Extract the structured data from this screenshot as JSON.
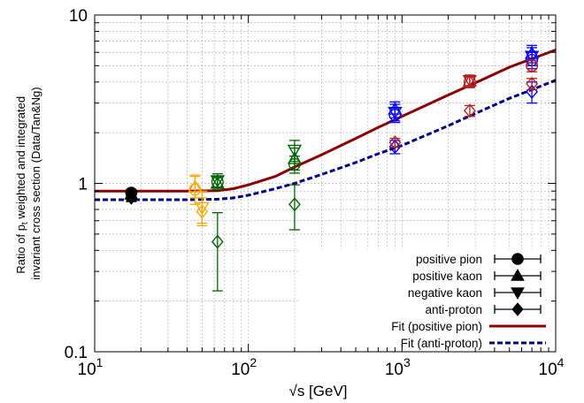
{
  "chart_data": {
    "type": "scatter",
    "xlabel": "√s [GeV]",
    "ylabel_line1_pre": "Ratio of p",
    "ylabel_line1_sub": "t",
    "ylabel_line1_post": " weighted and integrated",
    "ylabel_line2": "invariant cross section (Data/Tan&Ng)",
    "x_scale": "log",
    "y_scale": "log",
    "xlim": [
      10,
      10000
    ],
    "ylim": [
      0.1,
      10
    ],
    "x_ticks": [
      {
        "value": 10,
        "base": "10",
        "exp": "1"
      },
      {
        "value": 100,
        "base": "10",
        "exp": "2"
      },
      {
        "value": 1000,
        "base": "10",
        "exp": "3"
      },
      {
        "value": 10000,
        "base": "10",
        "exp": "4"
      }
    ],
    "y_ticks": [
      {
        "value": 0.1,
        "label": "0.1"
      },
      {
        "value": 1,
        "label": "1"
      },
      {
        "value": 10,
        "label": "10"
      }
    ],
    "grid": true,
    "legend_position": "bottom-right",
    "legend": [
      {
        "label": "positive pion",
        "marker": "circle"
      },
      {
        "label": "positive kaon",
        "marker": "triangle-up"
      },
      {
        "label": "negative kaon",
        "marker": "triangle-down"
      },
      {
        "label": "anti-proton",
        "marker": "diamond"
      },
      {
        "label": "Fit (positive pion)",
        "line": "solid",
        "color": "#8b0000"
      },
      {
        "label": "Fit (anti-proton)",
        "line": "dashed",
        "color": "#00008b"
      }
    ],
    "energy_groups": [
      {
        "energy_gev": 17.3,
        "color": "#000000",
        "fill": "filled",
        "points": [
          {
            "species": "positive pion",
            "y": 0.88,
            "yerr": [
              0.84,
              0.92
            ]
          },
          {
            "species": "positive kaon",
            "y": 0.86,
            "yerr": [
              0.82,
              0.9
            ]
          },
          {
            "species": "negative kaon",
            "y": 0.84,
            "yerr": [
              0.8,
              0.88
            ]
          },
          {
            "species": "anti-proton",
            "y": 0.82,
            "yerr": [
              0.78,
              0.86
            ]
          }
        ]
      },
      {
        "energy_gev": 45,
        "color": "#ffa500",
        "fill": "open",
        "points": [
          {
            "species": "positive pion",
            "y": 0.92,
            "yerr": [
              0.75,
              1.12
            ]
          },
          {
            "species": "positive kaon",
            "y": 0.95,
            "yerr": [
              0.82,
              1.1
            ]
          }
        ]
      },
      {
        "energy_gev": 50,
        "color": "#ffa500",
        "fill": "open",
        "points": [
          {
            "species": "negative kaon",
            "y": 0.72,
            "yerr": [
              0.58,
              0.9
            ]
          },
          {
            "species": "anti-proton",
            "y": 0.68,
            "yerr": [
              0.56,
              0.82
            ]
          }
        ]
      },
      {
        "energy_gev": 63,
        "color": "#006400",
        "fill": "open",
        "points": [
          {
            "species": "positive pion",
            "y": 1.02,
            "yerr": [
              0.95,
              1.1
            ]
          },
          {
            "species": "positive kaon",
            "y": 1.0,
            "yerr": [
              0.92,
              1.08
            ]
          },
          {
            "species": "negative kaon",
            "y": 1.04,
            "yerr": [
              0.95,
              1.14
            ]
          },
          {
            "species": "anti-proton",
            "y": 0.45,
            "yerr": [
              0.23,
              0.67
            ]
          }
        ]
      },
      {
        "energy_gev": 200,
        "color": "#006400",
        "fill": "open",
        "points": [
          {
            "species": "positive pion",
            "y": 1.3,
            "yerr": [
              1.15,
              1.45
            ]
          },
          {
            "species": "positive kaon",
            "y": 1.4,
            "yerr": [
              1.2,
              1.62
            ]
          },
          {
            "species": "negative kaon",
            "y": 1.58,
            "yerr": [
              1.35,
              1.8
            ]
          },
          {
            "species": "anti-proton",
            "y": 0.75,
            "yerr": [
              0.53,
              0.98
            ]
          }
        ]
      },
      {
        "energy_gev": 900,
        "color": "#0000ff",
        "fill": "open",
        "points": [
          {
            "species": "positive pion",
            "y": 2.55,
            "yerr": [
              2.3,
              2.8
            ]
          },
          {
            "species": "positive kaon",
            "y": 2.75,
            "yerr": [
              2.45,
              3.05
            ]
          },
          {
            "species": "negative kaon",
            "y": 2.65,
            "yerr": [
              2.35,
              2.95
            ]
          },
          {
            "species": "anti-proton",
            "y": 1.65,
            "yerr": [
              1.5,
              1.8
            ]
          }
        ]
      },
      {
        "energy_gev": 900,
        "color": "#b22222",
        "fill": "open",
        "points": [
          {
            "species": "anti-proton",
            "y": 1.75,
            "yerr": [
              1.65,
              1.85
            ]
          }
        ]
      },
      {
        "energy_gev": 2760,
        "color": "#b22222",
        "fill": "open",
        "points": [
          {
            "species": "positive pion",
            "y": 4.0,
            "yerr": [
              3.7,
              4.3
            ]
          },
          {
            "species": "positive kaon",
            "y": 4.05,
            "yerr": [
              3.75,
              4.35
            ]
          },
          {
            "species": "negative kaon",
            "y": 4.1,
            "yerr": [
              3.8,
              4.4
            ]
          },
          {
            "species": "anti-proton",
            "y": 2.7,
            "yerr": [
              2.5,
              2.9
            ]
          }
        ]
      },
      {
        "energy_gev": 7000,
        "color": "#0000ff",
        "fill": "open",
        "points": [
          {
            "species": "positive pion",
            "y": 5.4,
            "yerr": [
              4.8,
              6.0
            ]
          },
          {
            "species": "positive kaon",
            "y": 5.9,
            "yerr": [
              5.2,
              6.6
            ]
          },
          {
            "species": "negative kaon",
            "y": 5.7,
            "yerr": [
              5.0,
              6.4
            ]
          },
          {
            "species": "anti-proton",
            "y": 3.5,
            "yerr": [
              3.0,
              4.0
            ]
          }
        ]
      },
      {
        "energy_gev": 7000,
        "color": "#b22222",
        "fill": "open",
        "points": [
          {
            "species": "positive pion",
            "y": 5.0,
            "yerr": [
              4.6,
              5.4
            ]
          },
          {
            "species": "anti-proton",
            "y": 3.9,
            "yerr": [
              3.6,
              4.2
            ]
          }
        ]
      }
    ],
    "fit_curves": [
      {
        "name": "Fit (positive pion)",
        "color": "#8b0000",
        "style": "solid",
        "points": [
          [
            10,
            0.9
          ],
          [
            40,
            0.9
          ],
          [
            63,
            0.905
          ],
          [
            80,
            0.93
          ],
          [
            100,
            0.98
          ],
          [
            150,
            1.1
          ],
          [
            200,
            1.25
          ],
          [
            300,
            1.48
          ],
          [
            500,
            1.85
          ],
          [
            700,
            2.15
          ],
          [
            1000,
            2.5
          ],
          [
            2000,
            3.35
          ],
          [
            3000,
            3.95
          ],
          [
            5000,
            4.9
          ],
          [
            7000,
            5.5
          ],
          [
            10000,
            6.2
          ]
        ]
      },
      {
        "name": "Fit (anti-proton)",
        "color": "#00008b",
        "style": "dashed",
        "points": [
          [
            10,
            0.8
          ],
          [
            40,
            0.8
          ],
          [
            63,
            0.805
          ],
          [
            80,
            0.82
          ],
          [
            100,
            0.85
          ],
          [
            150,
            0.93
          ],
          [
            200,
            1.0
          ],
          [
            300,
            1.13
          ],
          [
            500,
            1.33
          ],
          [
            700,
            1.5
          ],
          [
            1000,
            1.68
          ],
          [
            2000,
            2.2
          ],
          [
            3000,
            2.6
          ],
          [
            5000,
            3.2
          ],
          [
            7000,
            3.6
          ],
          [
            10000,
            4.1
          ]
        ]
      }
    ]
  }
}
